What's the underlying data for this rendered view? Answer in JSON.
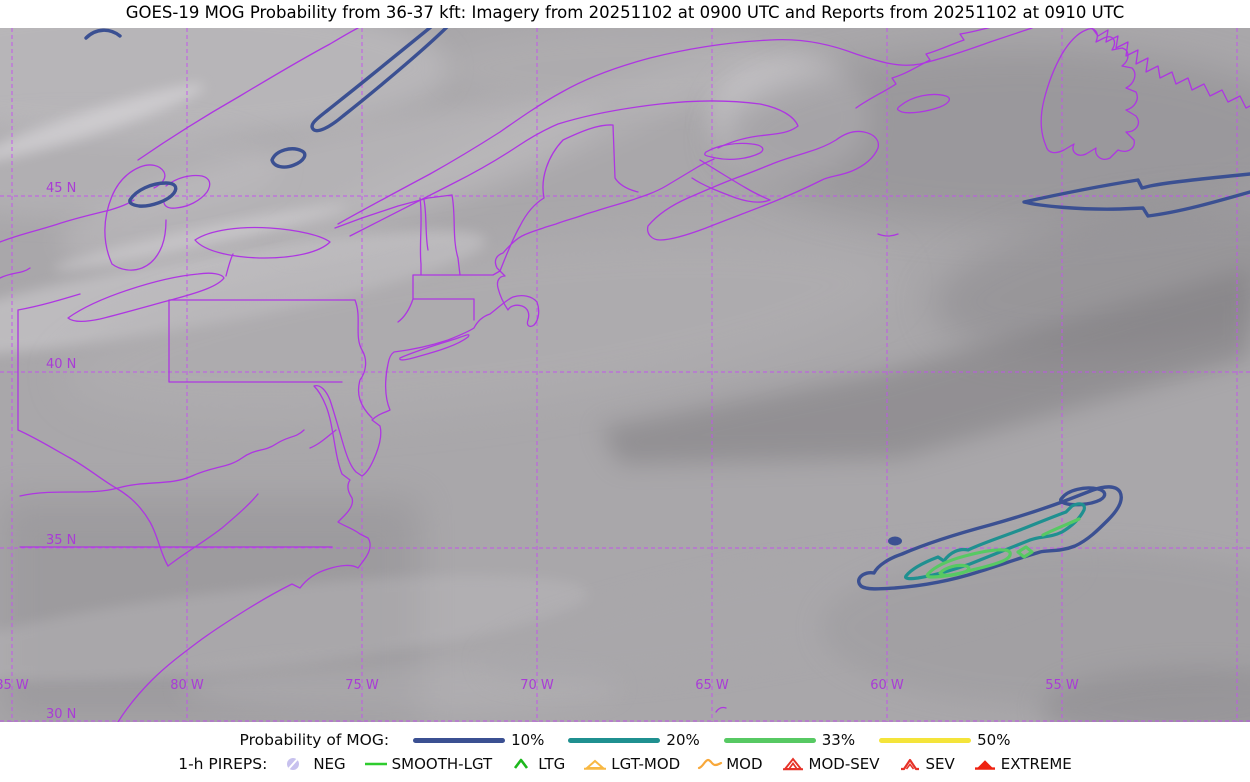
{
  "title": "GOES-19 MOG Probability from 36-37 kft: Imagery from 20251102 at 0900 UTC and Reports from 20251102 at 0910 UTC",
  "map": {
    "lat_labels": [
      "45 N",
      "40 N",
      "35 N",
      "30 N"
    ],
    "lon_labels": [
      "85 W",
      "80 W",
      "75 W",
      "70 W",
      "65 W",
      "60 W",
      "55 W"
    ]
  },
  "colors": {
    "grid": "#c44ef2",
    "coast": "#ae36e2",
    "grid_label": "#a93cd6",
    "p10": "#3b5092",
    "p20": "#1f9090",
    "p33": "#57c963",
    "p50": "#f4e43a",
    "satellite_base": "#a9a7aa"
  },
  "legend": {
    "mog": {
      "label": "Probability of MOG:",
      "entries": [
        {
          "label": "10%",
          "color": "#3b5092"
        },
        {
          "label": "20%",
          "color": "#1f9090"
        },
        {
          "label": "33%",
          "color": "#57c963"
        },
        {
          "label": "50%",
          "color": "#f4e43a"
        }
      ]
    },
    "pireps": {
      "label": "1-h PIREPS:",
      "entries": [
        {
          "label": "NEG",
          "symbol": "neg-circle-slash",
          "color": "#c7c1ee"
        },
        {
          "label": "SMOOTH-LGT",
          "symbol": "horizontal-line",
          "color": "#2ecc2e"
        },
        {
          "label": "LTG",
          "symbol": "chevron",
          "color": "#1db81d"
        },
        {
          "label": "LGT-MOD",
          "symbol": "triangle-open-on-line",
          "color": "#f8b843"
        },
        {
          "label": "MOD",
          "symbol": "wavy-caret",
          "color": "#f8a83a"
        },
        {
          "label": "MOD-SEV",
          "symbol": "triangle-chevron-on-line",
          "color": "#e63228"
        },
        {
          "label": "SEV",
          "symbol": "chevron-footed",
          "color": "#e63228"
        },
        {
          "label": "EXTREME",
          "symbol": "triangle-filled-on-line",
          "color": "#ee2211"
        }
      ]
    }
  },
  "map_contours": [
    {
      "level": "10%",
      "color": "#3b5092"
    },
    {
      "level": "20%",
      "color": "#1f9090"
    },
    {
      "level": "33%",
      "color": "#57c963"
    }
  ]
}
